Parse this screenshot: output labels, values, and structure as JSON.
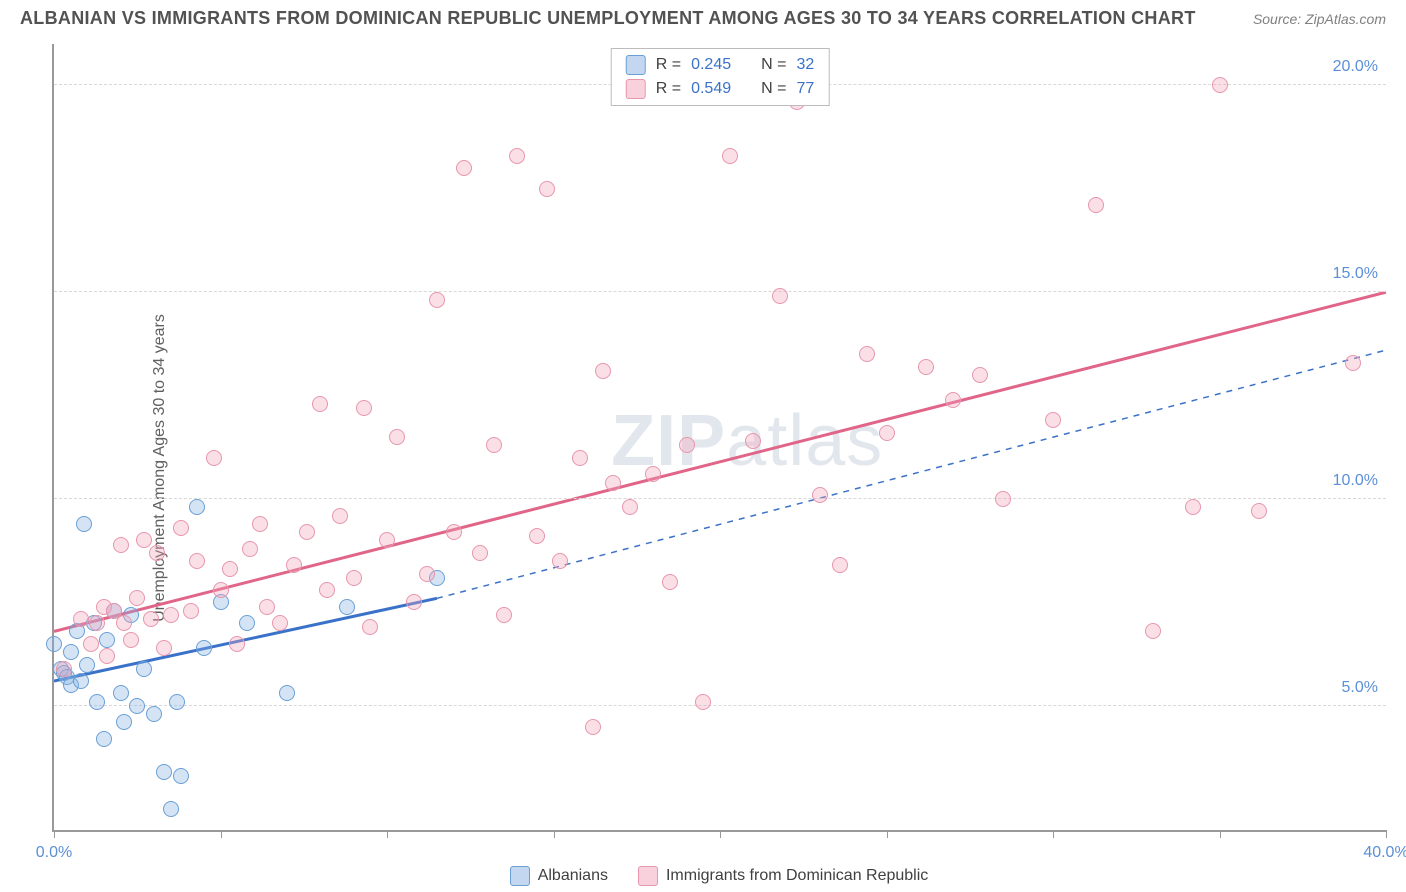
{
  "title": "ALBANIAN VS IMMIGRANTS FROM DOMINICAN REPUBLIC UNEMPLOYMENT AMONG AGES 30 TO 34 YEARS CORRELATION CHART",
  "source": "Source: ZipAtlas.com",
  "ylabel": "Unemployment Among Ages 30 to 34 years",
  "watermark": {
    "bold": "ZIP",
    "thin": "atlas"
  },
  "chart": {
    "type": "scatter",
    "xlim": [
      0,
      40
    ],
    "ylim": [
      2,
      21
    ],
    "xticks": [
      0,
      5,
      10,
      15,
      20,
      25,
      30,
      35,
      40
    ],
    "xticklabels": {
      "0": "0.0%",
      "40": "40.0%"
    },
    "yticks": [
      5,
      10,
      15,
      20
    ],
    "yticklabels": {
      "5": "5.0%",
      "10": "10.0%",
      "15": "15.0%",
      "20": "20.0%"
    },
    "grid_color": "#d8d8d8",
    "axis_color": "#999999",
    "background_color": "#ffffff",
    "label_color": "#5b8fd6",
    "marker_size": 16,
    "series": [
      {
        "id": "albanians",
        "label": "Albanians",
        "fill": "rgba(135,178,226,0.35)",
        "stroke": "#6a9fd6",
        "R": "0.245",
        "N": "32",
        "trend": {
          "x1": 0,
          "y1": 5.6,
          "x2": 11.5,
          "y2": 7.6,
          "dash": false,
          "color": "#3a72c9",
          "width": 3,
          "ext_x2": 40,
          "ext_y2": 13.6,
          "ext_dash": true
        },
        "points": [
          [
            0.0,
            6.5
          ],
          [
            0.2,
            5.9
          ],
          [
            0.3,
            5.8
          ],
          [
            0.4,
            5.7
          ],
          [
            0.5,
            6.3
          ],
          [
            0.5,
            5.5
          ],
          [
            0.7,
            6.8
          ],
          [
            0.8,
            5.6
          ],
          [
            0.9,
            9.4
          ],
          [
            1.0,
            6.0
          ],
          [
            1.2,
            7.0
          ],
          [
            1.3,
            5.1
          ],
          [
            1.5,
            4.2
          ],
          [
            1.6,
            6.6
          ],
          [
            1.8,
            7.3
          ],
          [
            2.0,
            5.3
          ],
          [
            2.1,
            4.6
          ],
          [
            2.3,
            7.2
          ],
          [
            2.5,
            5.0
          ],
          [
            2.7,
            5.9
          ],
          [
            3.0,
            4.8
          ],
          [
            3.3,
            3.4
          ],
          [
            3.5,
            2.5
          ],
          [
            3.7,
            5.1
          ],
          [
            3.8,
            3.3
          ],
          [
            4.3,
            9.8
          ],
          [
            4.5,
            6.4
          ],
          [
            5.0,
            7.5
          ],
          [
            5.8,
            7.0
          ],
          [
            7.0,
            5.3
          ],
          [
            8.8,
            7.4
          ],
          [
            11.5,
            8.1
          ]
        ]
      },
      {
        "id": "dominicans",
        "label": "Immigrants from Dominican Republic",
        "fill": "rgba(244,164,185,0.35)",
        "stroke": "#e796ac",
        "R": "0.549",
        "N": "77",
        "trend": {
          "x1": 0,
          "y1": 6.8,
          "x2": 40,
          "y2": 15.0,
          "dash": false,
          "color": "#e06588",
          "width": 3
        },
        "points": [
          [
            0.3,
            5.9
          ],
          [
            0.8,
            7.1
          ],
          [
            1.1,
            6.5
          ],
          [
            1.3,
            7.0
          ],
          [
            1.5,
            7.4
          ],
          [
            1.6,
            6.2
          ],
          [
            1.8,
            7.3
          ],
          [
            2.0,
            8.9
          ],
          [
            2.1,
            7.0
          ],
          [
            2.3,
            6.6
          ],
          [
            2.5,
            7.6
          ],
          [
            2.7,
            9.0
          ],
          [
            2.9,
            7.1
          ],
          [
            3.1,
            8.7
          ],
          [
            3.3,
            6.4
          ],
          [
            3.5,
            7.2
          ],
          [
            3.8,
            9.3
          ],
          [
            4.1,
            7.3
          ],
          [
            4.3,
            8.5
          ],
          [
            4.8,
            11.0
          ],
          [
            5.0,
            7.8
          ],
          [
            5.3,
            8.3
          ],
          [
            5.5,
            6.5
          ],
          [
            5.9,
            8.8
          ],
          [
            6.2,
            9.4
          ],
          [
            6.4,
            7.4
          ],
          [
            6.8,
            7.0
          ],
          [
            7.2,
            8.4
          ],
          [
            7.6,
            9.2
          ],
          [
            8.0,
            12.3
          ],
          [
            8.2,
            7.8
          ],
          [
            8.6,
            9.6
          ],
          [
            9.0,
            8.1
          ],
          [
            9.3,
            12.2
          ],
          [
            9.5,
            6.9
          ],
          [
            10.0,
            9.0
          ],
          [
            10.3,
            11.5
          ],
          [
            10.8,
            7.5
          ],
          [
            11.2,
            8.2
          ],
          [
            11.5,
            14.8
          ],
          [
            12.0,
            9.2
          ],
          [
            12.3,
            18.0
          ],
          [
            12.8,
            8.7
          ],
          [
            13.2,
            11.3
          ],
          [
            13.5,
            7.2
          ],
          [
            13.9,
            18.3
          ],
          [
            14.5,
            9.1
          ],
          [
            14.8,
            17.5
          ],
          [
            15.2,
            8.5
          ],
          [
            15.8,
            11.0
          ],
          [
            16.2,
            4.5
          ],
          [
            16.8,
            10.4
          ],
          [
            17.3,
            9.8
          ],
          [
            18.0,
            10.6
          ],
          [
            18.5,
            8.0
          ],
          [
            19.0,
            11.3
          ],
          [
            19.5,
            5.1
          ],
          [
            20.3,
            18.3
          ],
          [
            21.0,
            11.4
          ],
          [
            21.8,
            14.9
          ],
          [
            22.3,
            19.6
          ],
          [
            23.0,
            10.1
          ],
          [
            23.6,
            8.4
          ],
          [
            24.4,
            13.5
          ],
          [
            25.0,
            11.6
          ],
          [
            26.2,
            13.2
          ],
          [
            27.0,
            12.4
          ],
          [
            27.8,
            13.0
          ],
          [
            28.5,
            10.0
          ],
          [
            30.0,
            11.9
          ],
          [
            31.3,
            17.1
          ],
          [
            33.0,
            6.8
          ],
          [
            34.2,
            9.8
          ],
          [
            35.0,
            20.0
          ],
          [
            36.2,
            9.7
          ],
          [
            39.0,
            13.3
          ],
          [
            16.5,
            13.1
          ]
        ]
      }
    ]
  },
  "legend_labels": {
    "R": "R =",
    "N": "N ="
  }
}
